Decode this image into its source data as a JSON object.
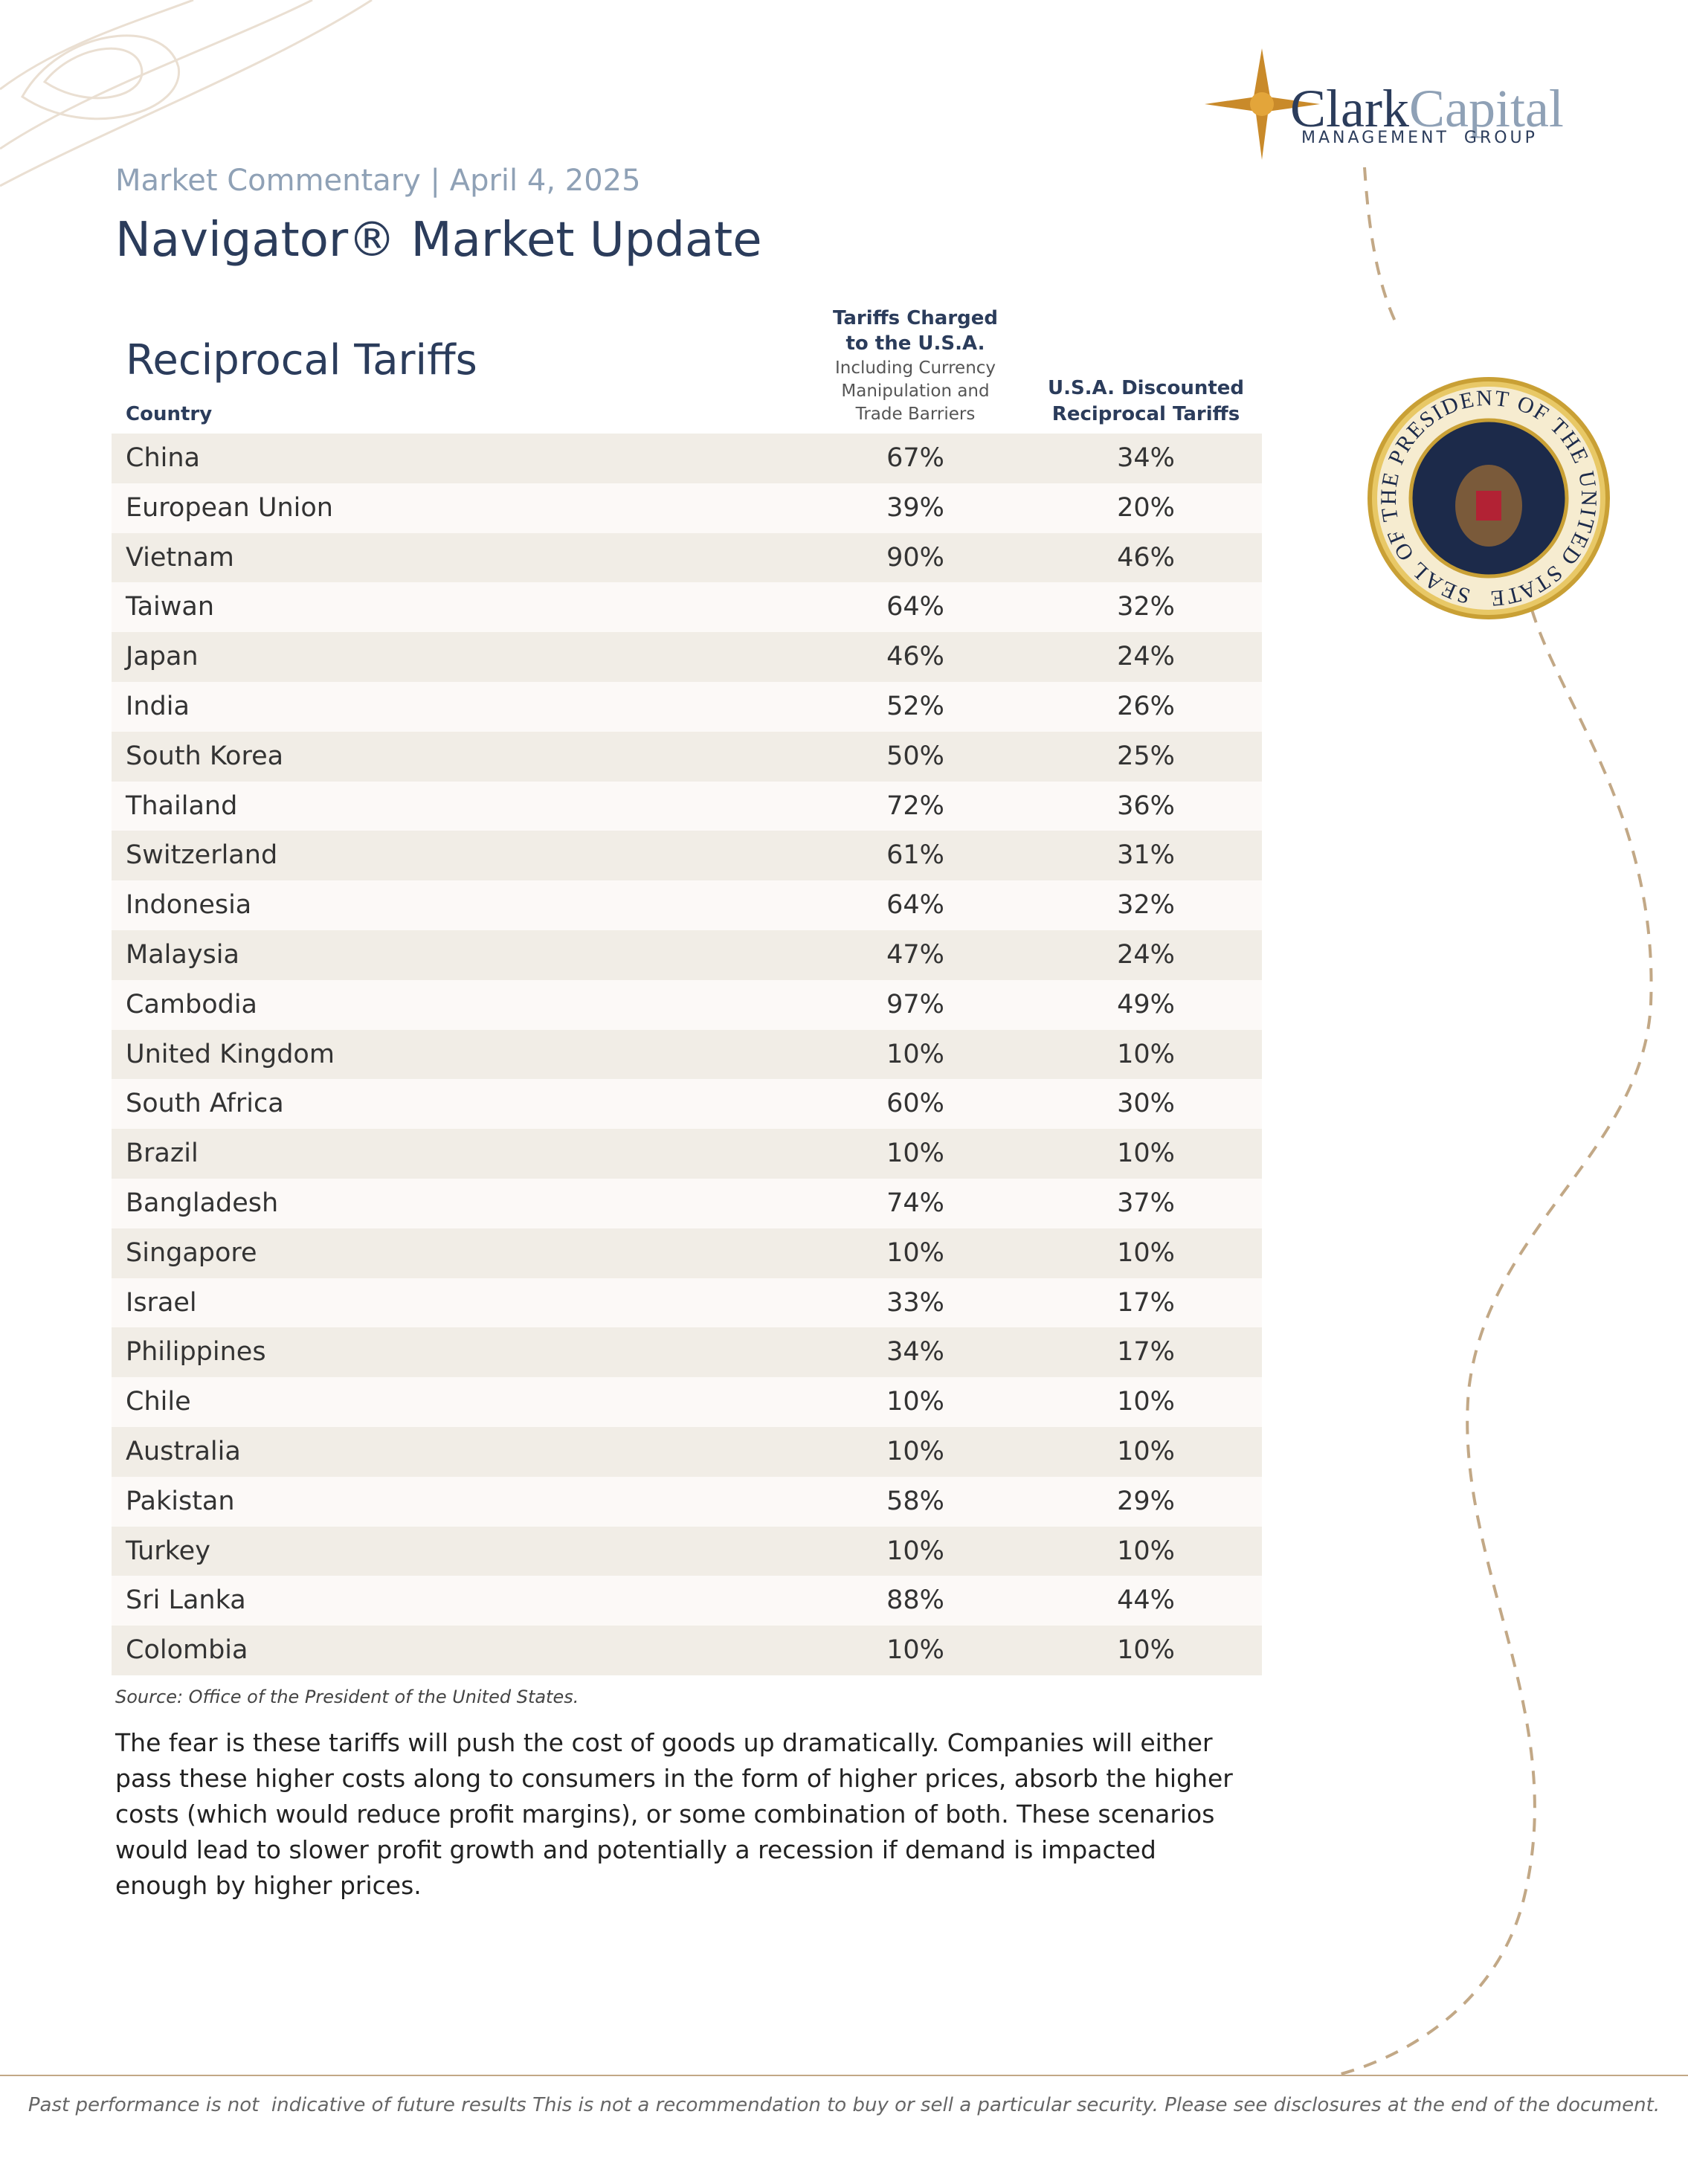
{
  "header": {
    "kicker": "Market Commentary | April 4, 2025",
    "title": "Navigator® Market Update"
  },
  "logo": {
    "name_a": "Clark",
    "name_b": "Capital",
    "sub_a": "MANAGEMENT",
    "sub_b": "GROUP"
  },
  "seal": {
    "text": "SEAL OF THE PRESIDENT OF THE UNITED STATES"
  },
  "table": {
    "title": "Reciprocal Tariffs",
    "columns": [
      "Country",
      [
        "Tariffs Charged",
        "to the U.S.A.",
        "Including Currency",
        "Manipulation and",
        "Trade Barriers"
      ],
      [
        "U.S.A. Discounted",
        "Reciprocal Tariffs"
      ]
    ],
    "rows": [
      [
        "China",
        "67%",
        "34%"
      ],
      [
        "European Union",
        "39%",
        "20%"
      ],
      [
        "Vietnam",
        "90%",
        "46%"
      ],
      [
        "Taiwan",
        "64%",
        "32%"
      ],
      [
        "Japan",
        "46%",
        "24%"
      ],
      [
        "India",
        "52%",
        "26%"
      ],
      [
        "South Korea",
        "50%",
        "25%"
      ],
      [
        "Thailand",
        "72%",
        "36%"
      ],
      [
        "Switzerland",
        "61%",
        "31%"
      ],
      [
        "Indonesia",
        "64%",
        "32%"
      ],
      [
        "Malaysia",
        "47%",
        "24%"
      ],
      [
        "Cambodia",
        "97%",
        "49%"
      ],
      [
        "United Kingdom",
        "10%",
        "10%"
      ],
      [
        "South Africa",
        "60%",
        "30%"
      ],
      [
        "Brazil",
        "10%",
        "10%"
      ],
      [
        "Bangladesh",
        "74%",
        "37%"
      ],
      [
        "Singapore",
        "10%",
        "10%"
      ],
      [
        "Israel",
        "33%",
        "17%"
      ],
      [
        "Philippines",
        "34%",
        "17%"
      ],
      [
        "Chile",
        "10%",
        "10%"
      ],
      [
        "Australia",
        "10%",
        "10%"
      ],
      [
        "Pakistan",
        "58%",
        "29%"
      ],
      [
        "Turkey",
        "10%",
        "10%"
      ],
      [
        "Sri Lanka",
        "88%",
        "44%"
      ],
      [
        "Colombia",
        "10%",
        "10%"
      ]
    ],
    "source": "Source: Office of the President of the United States."
  },
  "body": "The fear is these tariffs will push the cost of goods up dramatically. Companies will either pass these higher costs along to consumers in the form of higher prices, absorb the higher costs (which would reduce profit margins), or some combination of both. These scenarios would lead to slower profit growth and potentially a recession if demand is impacted enough by higher prices.",
  "footer": "Past performance is not  indicative of future results This is not a recommendation to buy or sell a particular security. Please see disclosures at the end of the document."
}
